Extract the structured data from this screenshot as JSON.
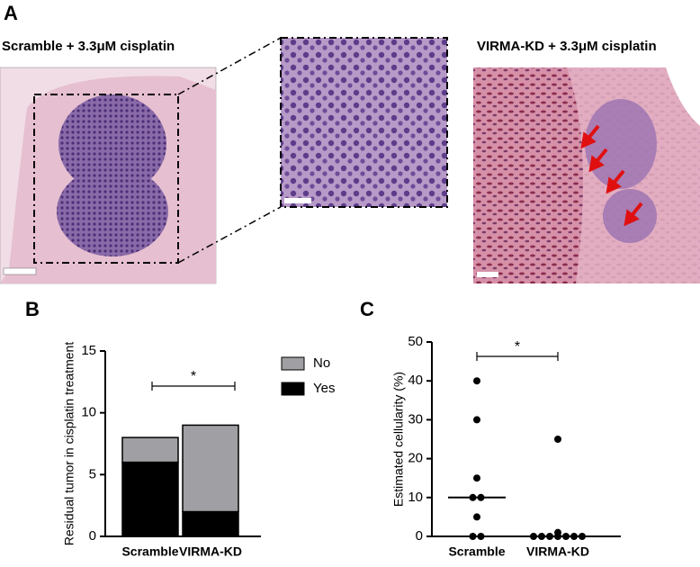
{
  "figure": {
    "panel_labels": [
      "A",
      "B",
      "C"
    ],
    "images": [
      {
        "title": "Scramble + 3.3μM cisplatin"
      },
      {
        "title": "VIRMA-KD + 3.3μM cisplatin"
      }
    ]
  },
  "chart_data": [
    {
      "type": "stacked-bar",
      "ylabel": "Residual tumor in cisplatin treatment",
      "categories": [
        "Scramble",
        "VIRMA-KD"
      ],
      "series": [
        {
          "name": "Yes",
          "color": "#000000",
          "values": [
            6,
            2
          ]
        },
        {
          "name": "No",
          "color": "#a0a0a4",
          "values": [
            2,
            7
          ]
        }
      ],
      "ylim": [
        0,
        15
      ],
      "yticks": [
        0,
        5,
        10,
        15
      ],
      "annotation": "*",
      "legend": "right"
    },
    {
      "type": "dot-plot",
      "ylabel": "Estimated cellularity (%)",
      "groups": [
        {
          "name": "Scramble",
          "values": [
            40,
            30,
            15,
            10,
            10,
            5,
            0,
            0
          ],
          "median": 10
        },
        {
          "name": "VIRMA-KD",
          "values": [
            25,
            1,
            0,
            0,
            0,
            0,
            0,
            0,
            0
          ],
          "median": 0
        }
      ],
      "color": "#000000",
      "ylim": [
        0,
        50
      ],
      "yticks": [
        0,
        10,
        20,
        30,
        40,
        50
      ],
      "annotation": "*"
    }
  ]
}
